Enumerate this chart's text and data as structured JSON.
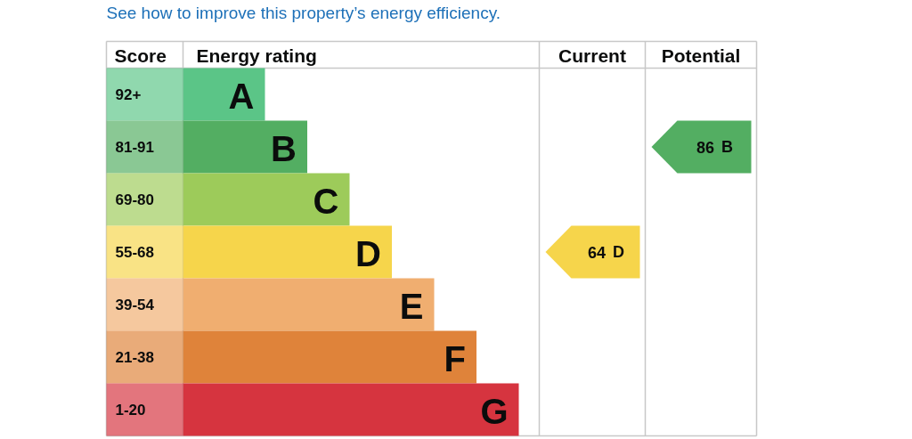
{
  "chart_data": {
    "type": "other",
    "title": "See how to improve this property’s energy efficiency.",
    "ylabel": "Score",
    "xlabel": "Energy rating",
    "categories": [
      "92+",
      "81-91",
      "69-80",
      "55-68",
      "39-54",
      "21-38",
      "1-20"
    ],
    "colors": [
      "#5bc587",
      "#53ae62",
      "#9dcb5a",
      "#f6d54b",
      "#f0ae70",
      "#df833a",
      "#d6343f"
    ],
    "value_labels": [
      "A",
      "B",
      "C",
      "D",
      "E",
      "F",
      "G"
    ],
    "annotations": [
      "Current",
      "Potential"
    ],
    "data_labels": true,
    "series": [
      {
        "color": "#f6d54b",
        "values": [
          null,
          null,
          null,
          64,
          null,
          null,
          null
        ]
      },
      {
        "color": "#53ae62",
        "values": [
          null,
          86,
          null,
          null,
          null,
          null,
          null
        ]
      }
    ]
  }
}
